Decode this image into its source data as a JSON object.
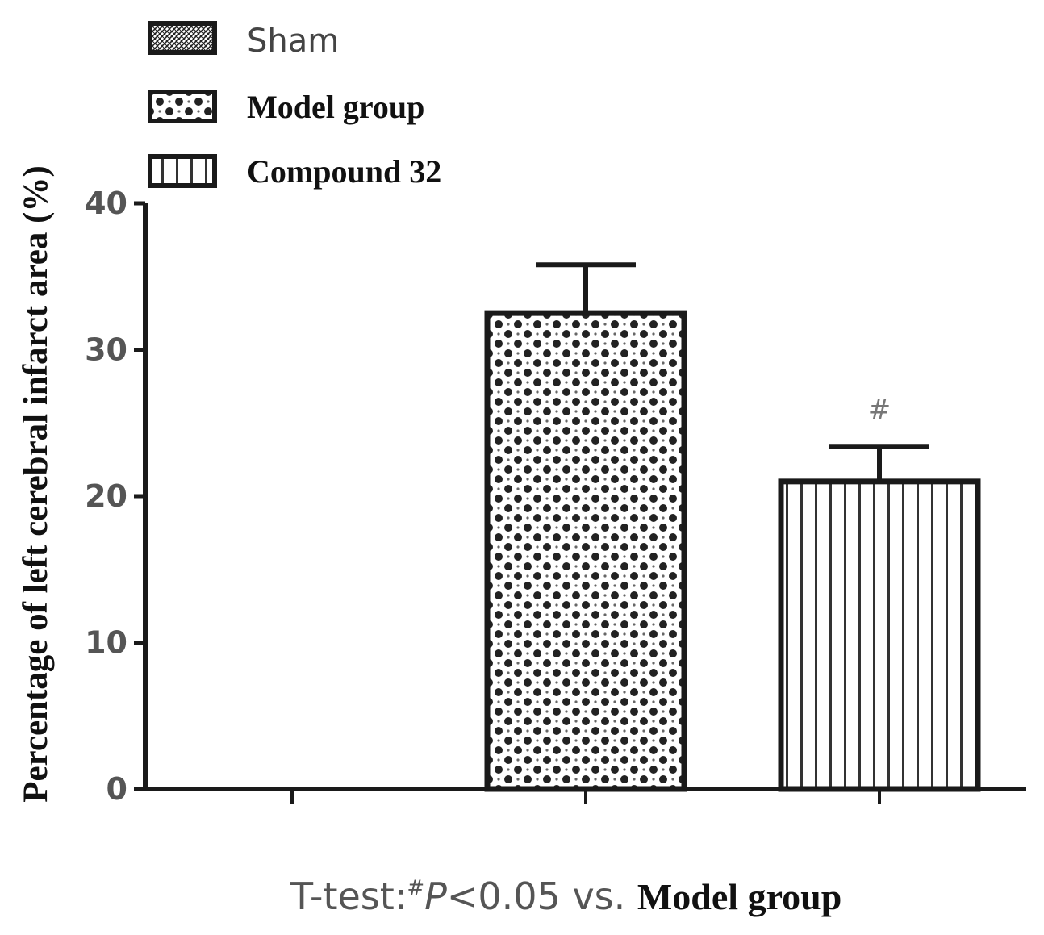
{
  "chart_data": {
    "type": "bar",
    "categories": [
      "Sham",
      "Model group",
      "Compound 32"
    ],
    "series": [
      {
        "name": "Percentage of left cerebral infarct area (%)",
        "values": [
          0,
          32.5,
          21
        ],
        "error": [
          0,
          3.3,
          2.4
        ]
      }
    ],
    "ylabel": "Percentage of left cerebral infarct area (%)",
    "xlabel": "",
    "ylim": [
      0,
      40
    ],
    "yticks": [
      "0",
      "10",
      "20",
      "30",
      "40"
    ],
    "legend": {
      "position": "top-left",
      "entries": [
        {
          "label": "Sham",
          "pattern": "dense-hatch"
        },
        {
          "label": "Model group",
          "pattern": "checker-dots"
        },
        {
          "label": "Compound 32",
          "pattern": "vertical-lines"
        }
      ]
    },
    "annotations": [
      {
        "category": "Compound 32",
        "text": "#"
      }
    ],
    "footnote": {
      "prefix": "T-test:",
      "superscript": "#",
      "p_text": "P",
      "condition": "<0.05 vs. ",
      "reference": "Model group"
    },
    "grid": false,
    "colors": {
      "ink": "#1a1a1a",
      "background": "#ffffff"
    }
  }
}
